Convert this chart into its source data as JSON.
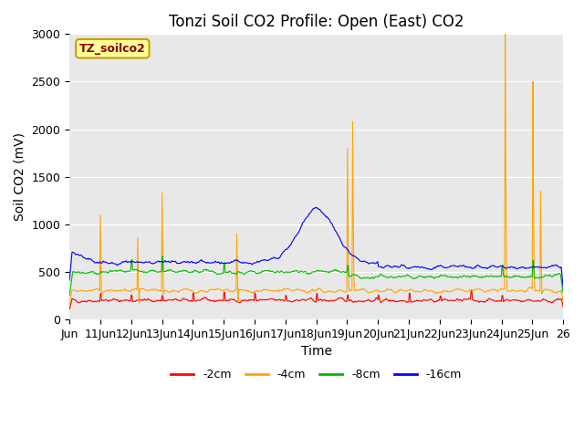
{
  "title": "Tonzi Soil CO2 Profile: Open (East) CO2",
  "ylabel": "Soil CO2 (mV)",
  "xlabel": "Time",
  "legend_label": "TZ_soilco2",
  "ylim": [
    0,
    3000
  ],
  "xlim_start": 10,
  "xlim_end": 26,
  "xtick_positions": [
    10,
    11,
    12,
    13,
    14,
    15,
    16,
    17,
    18,
    19,
    20,
    21,
    22,
    23,
    24,
    25,
    26
  ],
  "xtick_labels": [
    "Jun",
    "11Jun",
    "12Jun",
    "13Jun",
    "14Jun",
    "15Jun",
    "16Jun",
    "17Jun",
    "18Jun",
    "19Jun",
    "20Jun",
    "21Jun",
    "22Jun",
    "23Jun",
    "24Jun",
    "25Jun",
    "26"
  ],
  "ytick_positions": [
    0,
    500,
    1000,
    1500,
    2000,
    2500,
    3000
  ],
  "ytick_labels": [
    "0",
    "500",
    "1000",
    "1500",
    "2000",
    "2500",
    "3000"
  ],
  "series_colors": {
    "2cm": "#ff0000",
    "4cm": "#ffa500",
    "8cm": "#00bb00",
    "16cm": "#0000ff"
  },
  "series_labels": {
    "2cm": "-2cm",
    "4cm": "-4cm",
    "8cm": "-8cm",
    "16cm": "-16cm"
  },
  "bg_color": "#e8e8e8",
  "fig_bg": "#ffffff",
  "title_fontsize": 12,
  "axis_fontsize": 10,
  "tick_fontsize": 9,
  "label_box_color": "#ffff99",
  "label_box_edge": "#c8a000",
  "label_text_color": "#8b0000"
}
